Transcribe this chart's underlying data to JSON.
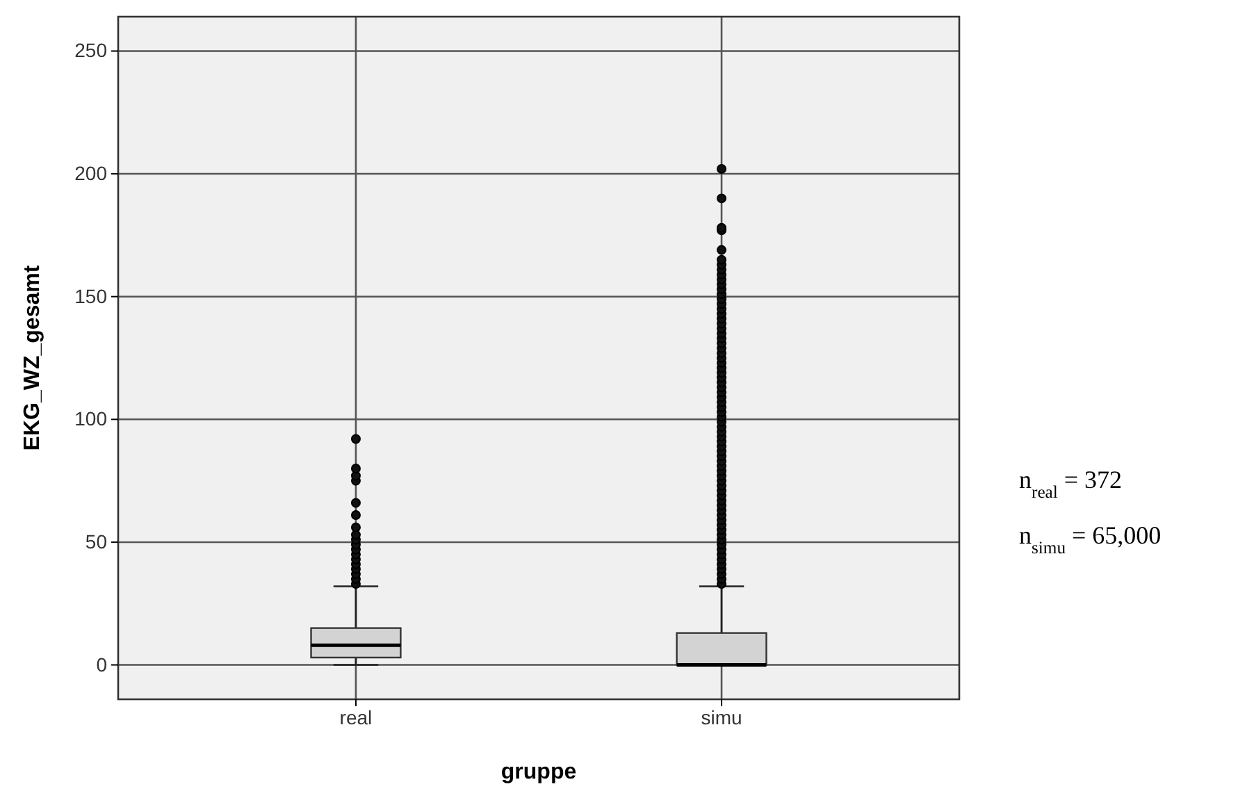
{
  "chart_data": {
    "type": "box",
    "xlabel": "gruppe",
    "ylabel": "EKG_WZ_gesamt",
    "categories": [
      "real",
      "simu"
    ],
    "boxes": [
      {
        "low": 0,
        "q1": 3,
        "median": 8,
        "q3": 15,
        "high": 32,
        "outliers": [
          33,
          35,
          37,
          39,
          41,
          43,
          45,
          47,
          49,
          51,
          53,
          56,
          61,
          66,
          75,
          77,
          80,
          92
        ]
      },
      {
        "low": 0,
        "q1": 0,
        "median": 0,
        "q3": 13,
        "high": 32,
        "outliers": [
          33,
          35,
          37,
          39,
          41,
          43,
          45,
          47,
          49,
          51,
          53,
          55,
          57,
          59,
          61,
          63,
          65,
          67,
          69,
          71,
          73,
          75,
          77,
          79,
          81,
          83,
          85,
          87,
          89,
          91,
          93,
          95,
          97,
          99,
          101,
          103,
          105,
          107,
          109,
          111,
          113,
          115,
          117,
          119,
          121,
          123,
          125,
          127,
          129,
          131,
          133,
          135,
          137,
          139,
          141,
          143,
          145,
          147,
          149,
          151,
          153,
          155,
          157,
          159,
          161,
          163,
          165,
          169,
          177,
          178,
          190,
          202
        ]
      }
    ],
    "color": "#d3d3d3",
    "ylim": [
      -14,
      264
    ],
    "yticks": [
      0,
      50,
      100,
      150,
      200,
      250
    ],
    "grid": true,
    "annotations": [
      "n$_{real}$ = 372",
      "n$_{simu}$ = 65,000"
    ]
  }
}
